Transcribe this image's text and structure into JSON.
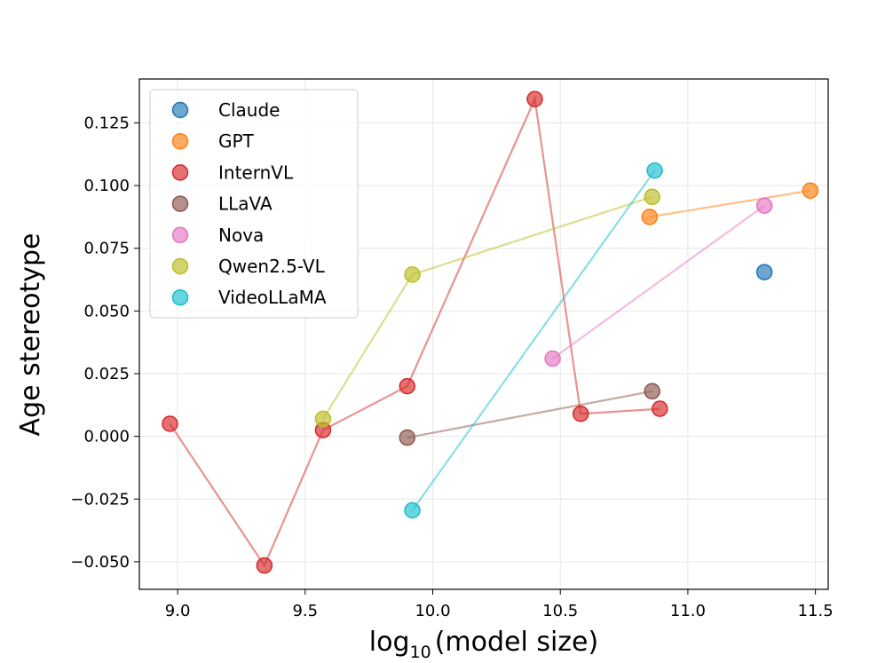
{
  "chart_data": {
    "type": "scatter",
    "title": "",
    "xlabel_base": "log",
    "xlabel_sub": "10",
    "xlabel_rest": "(model size)",
    "ylabel": "Age stereotype",
    "xlim": [
      8.85,
      11.55
    ],
    "ylim": [
      -0.061,
      0.1425
    ],
    "xticks": [
      9.0,
      9.5,
      10.0,
      10.5,
      11.0,
      11.5
    ],
    "xtick_labels": [
      "9.0",
      "9.5",
      "10.0",
      "10.5",
      "11.0",
      "11.5"
    ],
    "yticks": [
      -0.05,
      -0.025,
      0.0,
      0.025,
      0.05,
      0.075,
      0.1,
      0.125
    ],
    "ytick_labels": [
      "−0.050",
      "−0.025",
      "0.000",
      "0.025",
      "0.050",
      "0.075",
      "0.100",
      "0.125"
    ],
    "grid": true,
    "legend_position": "top-left",
    "series": [
      {
        "name": "Claude",
        "color": "#1f77b4",
        "points": [
          [
            11.3,
            0.0655
          ]
        ]
      },
      {
        "name": "GPT",
        "color": "#ff7f0e",
        "points": [
          [
            10.85,
            0.0875
          ],
          [
            11.48,
            0.098
          ]
        ]
      },
      {
        "name": "InternVL",
        "color": "#d62728",
        "points": [
          [
            8.97,
            0.005
          ],
          [
            9.34,
            -0.0515
          ],
          [
            9.57,
            0.0025
          ],
          [
            9.9,
            0.02
          ],
          [
            10.4,
            0.1345
          ],
          [
            10.58,
            0.009
          ],
          [
            10.89,
            0.011
          ]
        ]
      },
      {
        "name": "LLaVA",
        "color": "#8c564b",
        "points": [
          [
            9.9,
            -0.0005
          ],
          [
            10.86,
            0.018
          ]
        ]
      },
      {
        "name": "Nova",
        "color": "#e377c2",
        "points": [
          [
            10.47,
            0.031
          ],
          [
            11.3,
            0.092
          ]
        ]
      },
      {
        "name": "Qwen2.5-VL",
        "color": "#bcbd22",
        "points": [
          [
            9.57,
            0.007
          ],
          [
            9.92,
            0.0645
          ],
          [
            10.86,
            0.0955
          ]
        ]
      },
      {
        "name": "VideoLLaMA",
        "color": "#17becf",
        "points": [
          [
            9.92,
            -0.0295
          ],
          [
            10.87,
            0.106
          ]
        ]
      }
    ]
  }
}
